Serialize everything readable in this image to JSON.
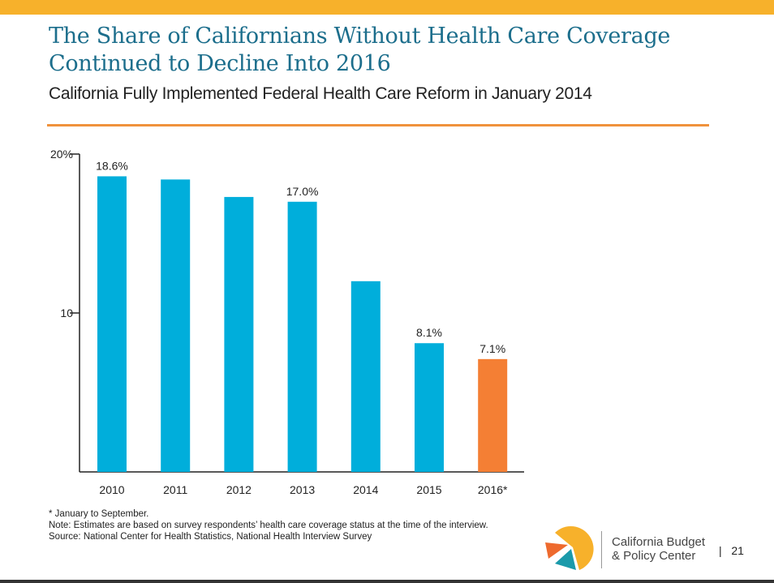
{
  "header": {
    "title_line1": "The Share of Californians Without Health Care Coverage",
    "title_line2": "Continued to Decline Into 2016",
    "subtitle": "California Fully Implemented Federal Health Care Reform in January 2014"
  },
  "chart_data": {
    "type": "bar",
    "title": "The Share of Californians Without Health Care Coverage Continued to Decline Into 2016",
    "categories": [
      "2010",
      "2011",
      "2012",
      "2013",
      "2014",
      "2015",
      "2016*"
    ],
    "values": [
      18.6,
      18.4,
      17.3,
      17.0,
      12.0,
      8.1,
      7.1
    ],
    "data_labels": [
      "18.6%",
      "",
      "",
      "17.0%",
      "",
      "8.1%",
      "7.1%"
    ],
    "colors": [
      "#00AEDB",
      "#00AEDB",
      "#00AEDB",
      "#00AEDB",
      "#00AEDB",
      "#00AEDB",
      "#F47F34"
    ],
    "yticks": [
      {
        "value": 20,
        "label": "20%"
      },
      {
        "value": 10,
        "label": "10"
      }
    ],
    "ylim": [
      0,
      20
    ],
    "xlabel": "",
    "ylabel": "",
    "grid": false
  },
  "notes": {
    "footnote": "* January to September.",
    "note": "Note: Estimates are based on survey respondents’ health care coverage status at the time of the interview.",
    "source": "Source: National Center for Health Statistics, National Health Interview Survey"
  },
  "footer": {
    "org_line1": "California Budget",
    "org_line2": "& Policy Center",
    "separator": "|",
    "page": "21"
  }
}
